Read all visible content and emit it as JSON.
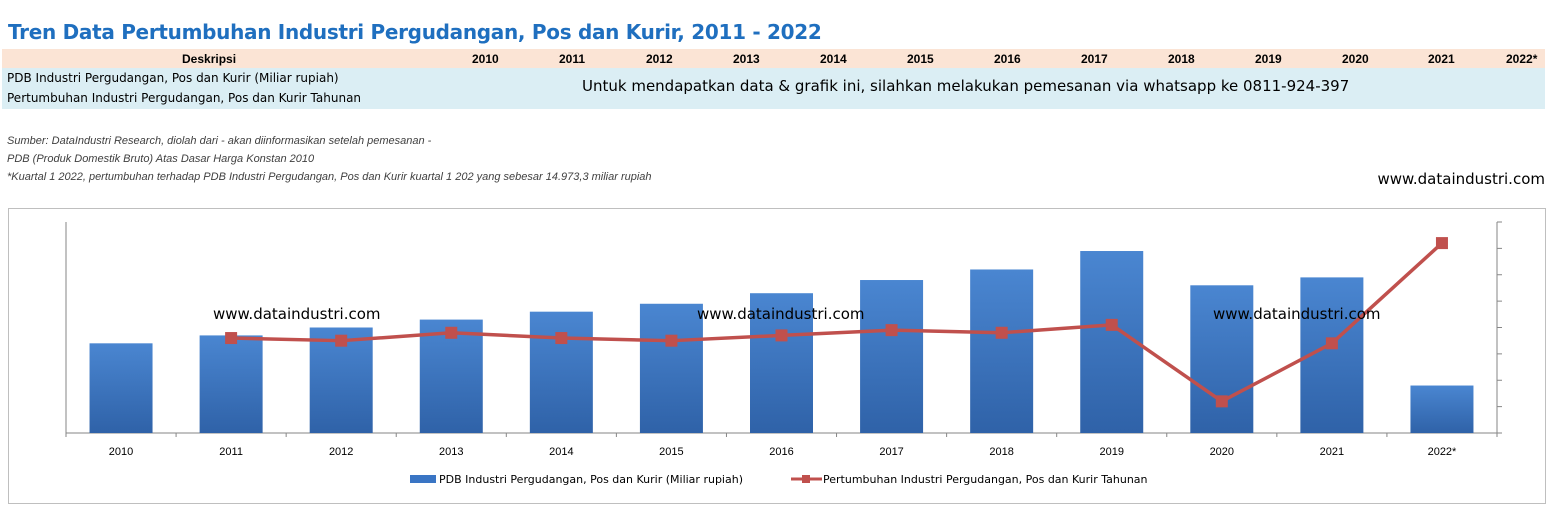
{
  "title": "Tren Data Pertumbuhan Industri Pergudangan, Pos dan Kurir, 2011 - 2022",
  "table": {
    "header_label": "Deskripsi",
    "years": [
      "2010",
      "2011",
      "2012",
      "2013",
      "2014",
      "2015",
      "2016",
      "2017",
      "2018",
      "2019",
      "2020",
      "2021",
      "2022*"
    ],
    "rows": [
      "PDB Industri Pergudangan, Pos dan Kurir (Miliar rupiah)",
      "Pertumbuhan Industri Pergudangan, Pos dan Kurir Tahunan"
    ],
    "notice": "Untuk mendapatkan data & grafik ini, silahkan melakukan pemesanan via whatsapp ke 0811-924-397"
  },
  "sources": [
    "Sumber: DataIndustri Research, diolah dari - akan diinformasikan setelah pemesanan -",
    "PDB (Produk Domestik Bruto) Atas Dasar Harga Konstan 2010",
    "*Kuartal 1 2022, pertumbuhan terhadap PDB Industri Pergudangan, Pos dan Kurir kuartal 1 202 yang sebesar 14.973,3 miliar rupiah"
  ],
  "website": "www.dataindustri.com",
  "watermarks": [
    "www.dataindustri.com",
    "www.dataindustri.com",
    "www.dataindustri.com"
  ],
  "colors": {
    "bar": "#3a75c4",
    "line": "#c0504d",
    "title": "#1f6fbf",
    "header_bg": "#fbe4d5",
    "row_bg": "#dbeef4"
  },
  "chart_data": {
    "type": "bar",
    "categories": [
      "2010",
      "2011",
      "2012",
      "2013",
      "2014",
      "2015",
      "2016",
      "2017",
      "2018",
      "2019",
      "2020",
      "2021",
      "2022*"
    ],
    "series": [
      {
        "name": "PDB Industri Pergudangan, Pos dan Kurir (Miliar rupiah)",
        "type": "bar",
        "axis": "left",
        "values": [
          3.4,
          3.7,
          4.0,
          4.3,
          4.6,
          4.9,
          5.3,
          5.8,
          6.2,
          6.9,
          5.6,
          5.9,
          1.8
        ]
      },
      {
        "name": "Pertumbuhan Industri Pergudangan, Pos dan Kurir Tahunan",
        "type": "line",
        "axis": "right",
        "values": [
          null,
          3.6,
          3.5,
          3.8,
          3.6,
          3.5,
          3.7,
          3.9,
          3.8,
          4.1,
          1.2,
          3.4,
          7.2
        ]
      }
    ],
    "ylim_left": [
      0,
      8
    ],
    "ylim_right": [
      0,
      8
    ],
    "y_tick_labels_shown": false,
    "legend_position": "bottom"
  }
}
